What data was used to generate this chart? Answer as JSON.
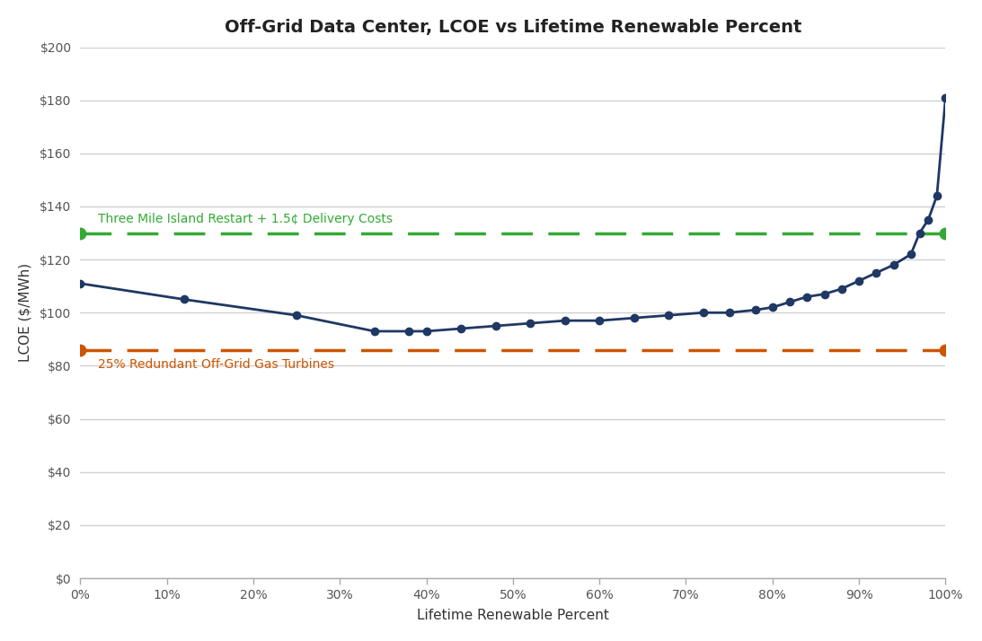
{
  "title": "Off-Grid Data Center, LCOE vs Lifetime Renewable Percent",
  "xlabel": "Lifetime Renewable Percent",
  "ylabel": "LCOE ($/MWh)",
  "plot_bg_color": "#ffffff",
  "fig_bg_color": "#ffffff",
  "line_color": "#1f3864",
  "line_marker": "o",
  "line_markersize": 6,
  "line_linewidth": 2,
  "green_line_value": 130,
  "green_line_color": "#33aa33",
  "orange_line_value": 86,
  "orange_line_color": "#cc5500",
  "green_label": "Three Mile Island Restart + 1.5¢ Delivery Costs",
  "orange_label": "25% Redundant Off-Grid Gas Turbines",
  "ylim": [
    0,
    200
  ],
  "yticks": [
    0,
    20,
    40,
    60,
    80,
    100,
    120,
    140,
    160,
    180,
    200
  ],
  "xlim": [
    0,
    1.0
  ],
  "xticks": [
    0,
    0.1,
    0.2,
    0.3,
    0.4,
    0.5,
    0.6,
    0.7,
    0.8,
    0.9,
    1.0
  ],
  "x_data": [
    0.0,
    0.12,
    0.25,
    0.34,
    0.38,
    0.4,
    0.44,
    0.48,
    0.52,
    0.56,
    0.6,
    0.64,
    0.68,
    0.72,
    0.75,
    0.78,
    0.8,
    0.82,
    0.84,
    0.86,
    0.88,
    0.9,
    0.92,
    0.94,
    0.96,
    0.97,
    0.98,
    0.99,
    1.0
  ],
  "y_data": [
    111,
    105,
    99,
    93,
    93,
    93,
    94,
    95,
    96,
    97,
    97,
    98,
    99,
    100,
    100,
    101,
    102,
    104,
    106,
    107,
    109,
    112,
    115,
    118,
    122,
    130,
    135,
    144,
    181
  ],
  "grid_color": "#d0d0d0",
  "spine_color": "#aaaaaa",
  "tick_label_color": "#555555",
  "title_fontsize": 14,
  "axis_label_fontsize": 11,
  "tick_fontsize": 10,
  "annotation_fontsize": 10
}
